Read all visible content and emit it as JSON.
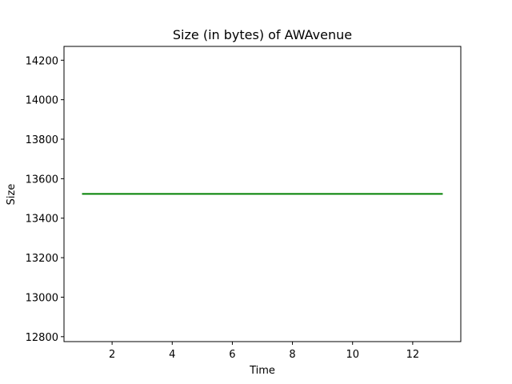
{
  "chart_data": {
    "type": "line",
    "title": "Size (in bytes) of AWAvenue",
    "xlabel": "Time",
    "ylabel": "Size",
    "xlim": [
      0.4,
      13.6
    ],
    "ylim": [
      12775,
      14270
    ],
    "xticks": [
      2,
      4,
      6,
      8,
      10,
      12
    ],
    "yticks": [
      12800,
      13000,
      13200,
      13400,
      13600,
      13800,
      14000,
      14200
    ],
    "grid": false,
    "series": [
      {
        "color": "#008000",
        "x": [
          1,
          2,
          3,
          4,
          5,
          6,
          7,
          8,
          9,
          10,
          11,
          12,
          13
        ],
        "y": [
          13523,
          13523,
          13523,
          13523,
          13523,
          13523,
          13523,
          13523,
          13523,
          13523,
          13523,
          13523,
          13523
        ]
      }
    ]
  }
}
